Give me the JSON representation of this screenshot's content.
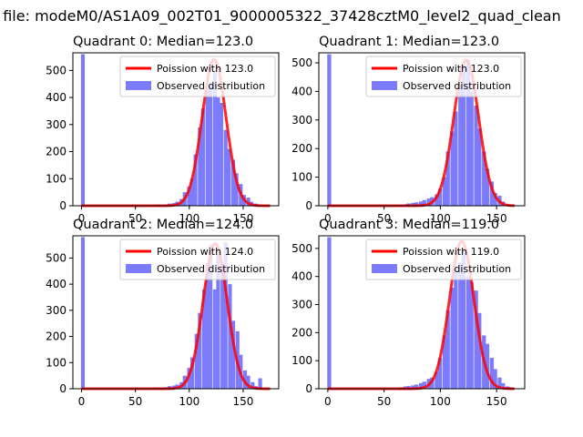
{
  "figure": {
    "suptitle": "n file: modeM0/AS1A09_002T01_9000005322_37428cztM0_level2_quad_clean"
  },
  "colors": {
    "observed": "#7b7bfb",
    "poisson": "#ff0000",
    "axis": "#000000",
    "background": "#ffffff"
  },
  "chart_data": [
    {
      "type": "bar",
      "title": "Quadrant 0: Median=123.0",
      "xlim": [
        -8,
        183
      ],
      "ylim": [
        0,
        565
      ],
      "xticks": [
        0,
        50,
        100,
        150
      ],
      "yticks": [
        0,
        100,
        200,
        300,
        400,
        500
      ],
      "legend": {
        "placement": "top-right",
        "entries": [
          "Poission with 123.0",
          "Observed distribution"
        ]
      },
      "poisson_mean": 123.0,
      "series": [
        {
          "name": "Observed distribution",
          "type": "bar",
          "bin_width": 3.5,
          "bins": [
            [
              -0.5,
              560
            ],
            [
              66,
              3
            ],
            [
              70,
              5
            ],
            [
              73,
              2
            ],
            [
              76,
              5
            ],
            [
              80,
              8
            ],
            [
              84,
              10
            ],
            [
              87,
              15
            ],
            [
              91,
              25
            ],
            [
              94,
              50
            ],
            [
              98,
              70
            ],
            [
              101,
              100
            ],
            [
              104,
              190
            ],
            [
              108,
              290
            ],
            [
              111,
              360
            ],
            [
              115,
              430
            ],
            [
              118,
              450
            ],
            [
              122,
              500
            ],
            [
              125,
              400
            ],
            [
              128,
              380
            ],
            [
              132,
              280
            ],
            [
              135,
              210
            ],
            [
              139,
              170
            ],
            [
              142,
              120
            ],
            [
              146,
              80
            ],
            [
              149,
              40
            ],
            [
              153,
              30
            ],
            [
              156,
              15
            ],
            [
              160,
              8
            ],
            [
              163,
              4
            ],
            [
              167,
              2
            ],
            [
              171,
              1
            ]
          ]
        },
        {
          "name": "Poission with 123.0",
          "type": "line",
          "mean": 123.0,
          "x_range": [
            0,
            175
          ],
          "peak": 540
        }
      ]
    },
    {
      "type": "bar",
      "title": "Quadrant 1: Median=123.0",
      "xlim": [
        -8,
        175
      ],
      "ylim": [
        0,
        535
      ],
      "xticks": [
        0,
        50,
        100,
        150
      ],
      "yticks": [
        0,
        100,
        200,
        300,
        400,
        500
      ],
      "legend": {
        "placement": "top-right",
        "entries": [
          "Poission with 123.0",
          "Observed distribution"
        ]
      },
      "poisson_mean": 123.0,
      "series": [
        {
          "name": "Observed distribution",
          "type": "bar",
          "bin_width": 3.5,
          "bins": [
            [
              -0.5,
              530
            ],
            [
              63,
              3
            ],
            [
              67,
              5
            ],
            [
              70,
              8
            ],
            [
              74,
              10
            ],
            [
              77,
              12
            ],
            [
              81,
              15
            ],
            [
              84,
              20
            ],
            [
              88,
              25
            ],
            [
              91,
              30
            ],
            [
              95,
              40
            ],
            [
              98,
              60
            ],
            [
              102,
              100
            ],
            [
              105,
              190
            ],
            [
              109,
              260
            ],
            [
              112,
              330
            ],
            [
              116,
              420
            ],
            [
              119,
              490
            ],
            [
              123,
              510
            ],
            [
              126,
              400
            ],
            [
              130,
              350
            ],
            [
              133,
              270
            ],
            [
              137,
              190
            ],
            [
              140,
              130
            ],
            [
              144,
              85
            ],
            [
              147,
              45
            ],
            [
              151,
              35
            ],
            [
              154,
              15
            ],
            [
              158,
              5
            ],
            [
              161,
              2
            ]
          ]
        },
        {
          "name": "Poission with 123.0",
          "type": "line",
          "mean": 123.0,
          "x_range": [
            0,
            166
          ],
          "peak": 510
        }
      ]
    },
    {
      "type": "bar",
      "title": "Quadrant 2: Median=124.0",
      "xlim": [
        -8,
        183
      ],
      "ylim": [
        0,
        585
      ],
      "xticks": [
        0,
        50,
        100,
        150
      ],
      "yticks": [
        0,
        100,
        200,
        300,
        400,
        500
      ],
      "legend": {
        "placement": "top-right",
        "entries": [
          "Poission with 124.0",
          "Observed distribution"
        ]
      },
      "poisson_mean": 124.0,
      "series": [
        {
          "name": "Observed distribution",
          "type": "bar",
          "bin_width": 3.5,
          "bins": [
            [
              -0.5,
              580
            ],
            [
              66,
              5
            ],
            [
              70,
              3
            ],
            [
              73,
              4
            ],
            [
              77,
              6
            ],
            [
              80,
              10
            ],
            [
              84,
              12
            ],
            [
              87,
              16
            ],
            [
              91,
              25
            ],
            [
              94,
              50
            ],
            [
              98,
              80
            ],
            [
              101,
              120
            ],
            [
              105,
              210
            ],
            [
              108,
              290
            ],
            [
              112,
              380
            ],
            [
              115,
              480
            ],
            [
              118,
              550
            ],
            [
              122,
              380
            ],
            [
              125,
              520
            ],
            [
              129,
              480
            ],
            [
              132,
              560
            ],
            [
              136,
              400
            ],
            [
              139,
              260
            ],
            [
              143,
              220
            ],
            [
              146,
              130
            ],
            [
              150,
              70
            ],
            [
              153,
              50
            ],
            [
              157,
              25
            ],
            [
              160,
              10
            ],
            [
              164,
              40
            ]
          ]
        },
        {
          "name": "Poission with 124.0",
          "type": "line",
          "mean": 124.0,
          "x_range": [
            0,
            175
          ],
          "peak": 555
        }
      ]
    },
    {
      "type": "bar",
      "title": "Quadrant 3: Median=119.0",
      "xlim": [
        -8,
        175
      ],
      "ylim": [
        0,
        545
      ],
      "xticks": [
        0,
        50,
        100,
        150
      ],
      "yticks": [
        0,
        100,
        200,
        300,
        400,
        500
      ],
      "legend": {
        "placement": "top-right",
        "entries": [
          "Poission with 119.0",
          "Observed distribution"
        ]
      },
      "poisson_mean": 119.0,
      "series": [
        {
          "name": "Observed distribution",
          "type": "bar",
          "bin_width": 3.5,
          "bins": [
            [
              -0.5,
              540
            ],
            [
              63,
              5
            ],
            [
              67,
              8
            ],
            [
              70,
              10
            ],
            [
              74,
              12
            ],
            [
              77,
              15
            ],
            [
              81,
              20
            ],
            [
              84,
              25
            ],
            [
              88,
              35
            ],
            [
              91,
              40
            ],
            [
              95,
              60
            ],
            [
              98,
              110
            ],
            [
              102,
              190
            ],
            [
              105,
              280
            ],
            [
              109,
              360
            ],
            [
              112,
              430
            ],
            [
              116,
              450
            ],
            [
              119,
              500
            ],
            [
              123,
              400
            ],
            [
              126,
              380
            ],
            [
              130,
              350
            ],
            [
              133,
              270
            ],
            [
              137,
              190
            ],
            [
              140,
              160
            ],
            [
              144,
              110
            ],
            [
              147,
              70
            ],
            [
              151,
              40
            ],
            [
              154,
              20
            ],
            [
              158,
              8
            ],
            [
              161,
              5
            ]
          ]
        },
        {
          "name": "Poission with 119.0",
          "type": "line",
          "mean": 119.0,
          "x_range": [
            0,
            166
          ],
          "peak": 525
        }
      ]
    }
  ]
}
